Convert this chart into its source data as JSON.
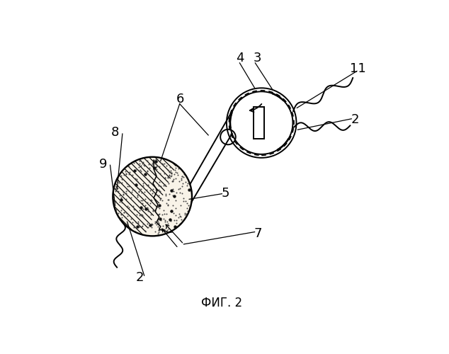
{
  "bg_color": "#ffffff",
  "title": "ФИГ. 2",
  "title_fontsize": 12,
  "rcx": 0.615,
  "rcy": 0.705,
  "rr": 0.115,
  "lcx": 0.215,
  "lcy": 0.435,
  "lr": 0.145,
  "label_fontsize": 13
}
